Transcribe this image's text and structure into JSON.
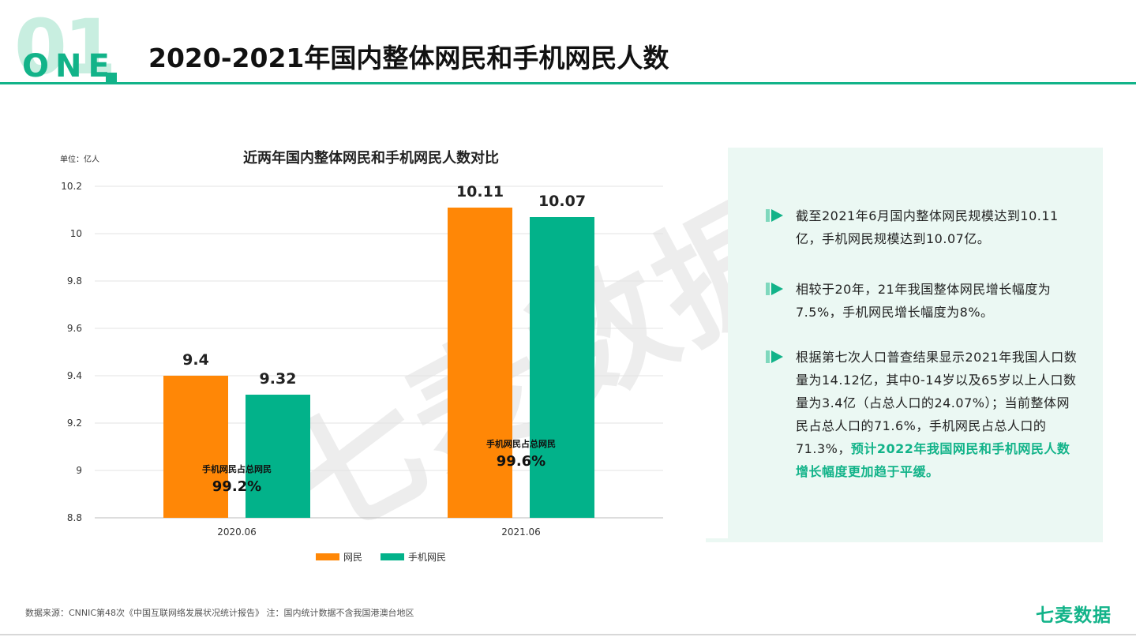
{
  "header": {
    "badge_big": "01",
    "badge_small": "ONE",
    "title": "2020-2021年国内整体网民和手机网民人数"
  },
  "colors": {
    "accent": "#12b389",
    "orange": "#ff8706",
    "teal": "#02b28a",
    "panel": "#ebf8f3"
  },
  "chart_data": {
    "type": "bar",
    "title": "近两年国内整体网民和手机网民人数对比",
    "unit_label": "单位：亿人",
    "categories": [
      "2020.06",
      "2021.06"
    ],
    "series": [
      {
        "name": "网民",
        "color": "#ff8706",
        "values": [
          9.4,
          10.11
        ],
        "labels": [
          "9.4",
          "10.11"
        ]
      },
      {
        "name": "手机网民",
        "color": "#02b28a",
        "values": [
          9.32,
          10.07
        ],
        "labels": [
          "9.32",
          "10.07"
        ]
      }
    ],
    "ylim": [
      8.8,
      10.2
    ],
    "yticks": [
      "10.2",
      "10",
      "9.8",
      "9.6",
      "9.4",
      "9.2",
      "9",
      "8.8"
    ],
    "ytick_values": [
      10.2,
      10.0,
      9.8,
      9.6,
      9.4,
      9.2,
      9.0,
      8.8
    ],
    "grid": true,
    "legend": "bottom",
    "annotations": [
      {
        "label": "手机网民占总网民",
        "value": "99.2%"
      },
      {
        "label": "手机网民占总网民",
        "value": "99.6%"
      }
    ]
  },
  "panel": {
    "items": [
      {
        "text": "截至2021年6月国内整体网民规模达到10.11亿，手机网民规模达到10.07亿。"
      },
      {
        "text": "相较于20年，21年我国整体网民增长幅度为7.5%，手机网民增长幅度为8%。"
      },
      {
        "text": "根据第七次人口普查结果显示2021年我国人口数量为14.12亿，其中0-14岁以及65岁以上人口数量为3.4亿（占总人口的24.07%）；当前整体网民占总人口的71.6%，手机网民占总人口的71.3%，",
        "highlight": "预计2022年我国网民和手机网民人数增长幅度更加趋于平缓。"
      }
    ]
  },
  "watermark": "七麦数据",
  "footer": {
    "source": "数据来源：CNNIC第48次《中国互联网络发展状况统计报告》 注：国内统计数据不含我国港澳台地区",
    "logo": "七麦数据"
  }
}
